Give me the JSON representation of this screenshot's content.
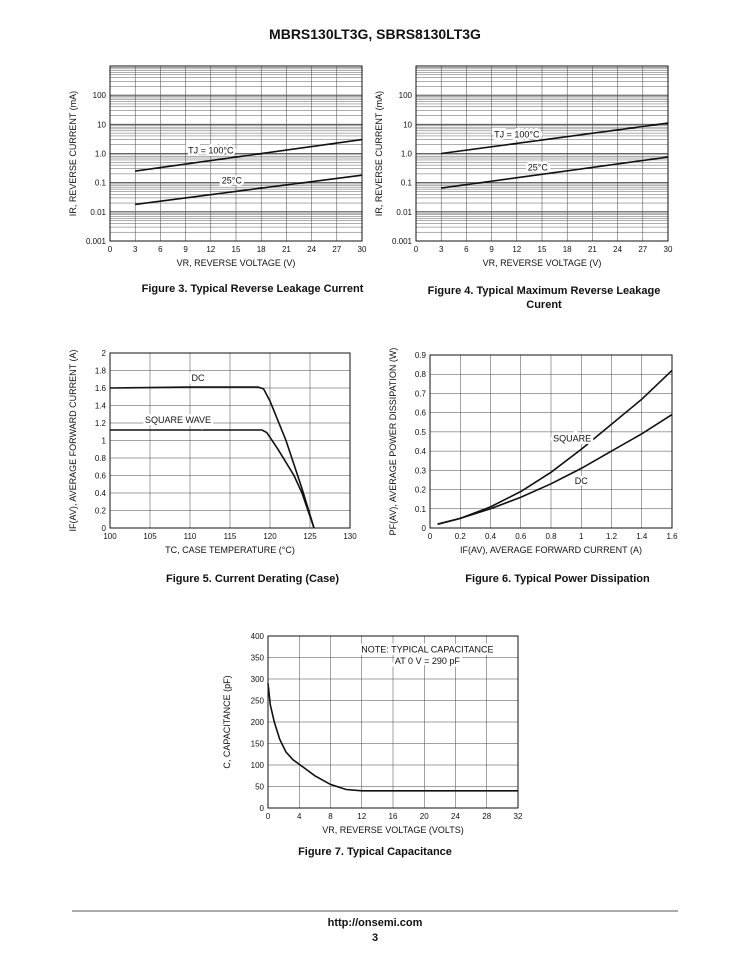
{
  "header": {
    "title": "MBRS130LT3G, SBRS8130LT3G"
  },
  "footer": {
    "url": "http://onsemi.com",
    "page": "3"
  },
  "chart_data": [
    {
      "type": "line",
      "id": "fig3",
      "caption": "Figure 3. Typical Reverse Leakage Current",
      "xlabel": "VR, REVERSE VOLTAGE (V)",
      "ylabel": "IR, REVERSE CURRENT (mA)",
      "xscale": "linear",
      "yscale": "log",
      "xlim": [
        0,
        30
      ],
      "ylim": [
        0.001,
        1000
      ],
      "xticks": [
        0,
        3,
        6,
        9,
        12,
        15,
        18,
        21,
        24,
        27,
        30
      ],
      "yticks": [
        0.001,
        0.01,
        0.1,
        1.0,
        10,
        100
      ],
      "ytick_labels": [
        "0.001",
        "0.01",
        "0.1",
        "1.0",
        "10",
        "100"
      ],
      "series": [
        {
          "name": "TJ = 100°C",
          "x": [
            3,
            30
          ],
          "y": [
            0.25,
            3.0
          ]
        },
        {
          "name": "25°C",
          "x": [
            3,
            30
          ],
          "y": [
            0.018,
            0.18
          ]
        }
      ]
    },
    {
      "type": "line",
      "id": "fig4",
      "caption": "Figure 4. Typical Maximum Reverse Leakage Curent",
      "xlabel": "VR, REVERSE VOLTAGE (V)",
      "ylabel": "IR, REVERSE CURRENT (mA)",
      "xscale": "linear",
      "yscale": "log",
      "xlim": [
        0,
        30
      ],
      "ylim": [
        0.001,
        1000
      ],
      "xticks": [
        0,
        3,
        6,
        9,
        12,
        15,
        18,
        21,
        24,
        27,
        30
      ],
      "yticks": [
        0.001,
        0.01,
        0.1,
        1.0,
        10,
        100
      ],
      "ytick_labels": [
        "0.001",
        "0.01",
        "0.1",
        "1.0",
        "10",
        "100"
      ],
      "series": [
        {
          "name": "TJ = 100°C",
          "x": [
            3,
            30
          ],
          "y": [
            1.0,
            11
          ]
        },
        {
          "name": "25°C",
          "x": [
            3,
            30
          ],
          "y": [
            0.065,
            0.75
          ]
        }
      ]
    },
    {
      "type": "line",
      "id": "fig5",
      "caption": "Figure 5. Current Derating (Case)",
      "xlabel": "TC, CASE TEMPERATURE (°C)",
      "ylabel": "IF(AV), AVERAGE FORWARD CURRENT (A)",
      "xlim": [
        100,
        130
      ],
      "ylim": [
        0,
        2
      ],
      "xticks": [
        100,
        105,
        110,
        115,
        120,
        125,
        130
      ],
      "yticks": [
        0,
        0.2,
        0.4,
        0.6,
        0.8,
        1,
        1.2,
        1.4,
        1.6,
        1.8,
        2
      ],
      "ytick_labels": [
        "0",
        "0.2",
        "0.4",
        "0.6",
        "0.8",
        "1",
        "1.2",
        "1.4",
        "1.6",
        "1.8",
        "2"
      ],
      "series": [
        {
          "name": "DC",
          "x": [
            100,
            110,
            118.5,
            119.2,
            120,
            122,
            124,
            125.5
          ],
          "y": [
            1.6,
            1.61,
            1.61,
            1.59,
            1.45,
            1.0,
            0.45,
            0
          ]
        },
        {
          "name": "SQUARE WAVE",
          "x": [
            100,
            110,
            119,
            119.6,
            121,
            123,
            124,
            125.5
          ],
          "y": [
            1.12,
            1.12,
            1.12,
            1.09,
            0.9,
            0.6,
            0.4,
            0
          ]
        }
      ]
    },
    {
      "type": "line",
      "id": "fig6",
      "caption": "Figure 6. Typical Power Dissipation",
      "xlabel": "IF(AV), AVERAGE FORWARD CURRENT (A)",
      "ylabel": "PF(AV), AVERAGE POWER DISSIPATION (W)",
      "xlim": [
        0,
        1.6
      ],
      "ylim": [
        0,
        0.9
      ],
      "xticks": [
        0,
        0.2,
        0.4,
        0.6,
        0.8,
        1,
        1.2,
        1.4,
        1.6
      ],
      "yticks": [
        0,
        0.1,
        0.2,
        0.3,
        0.4,
        0.5,
        0.6,
        0.7,
        0.8,
        0.9
      ],
      "ytick_labels": [
        "0",
        "0.1",
        "0.2",
        "0.3",
        "0.4",
        "0.5",
        "0.6",
        "0.7",
        "0.8",
        "0.9"
      ],
      "series": [
        {
          "name": "SQUARE",
          "x": [
            0.05,
            0.2,
            0.4,
            0.6,
            0.8,
            1.0,
            1.2,
            1.4,
            1.6
          ],
          "y": [
            0.02,
            0.05,
            0.11,
            0.19,
            0.29,
            0.41,
            0.54,
            0.67,
            0.82
          ]
        },
        {
          "name": "DC",
          "x": [
            0.05,
            0.2,
            0.4,
            0.6,
            0.8,
            1.0,
            1.2,
            1.4,
            1.6
          ],
          "y": [
            0.02,
            0.05,
            0.1,
            0.16,
            0.23,
            0.31,
            0.4,
            0.49,
            0.59
          ]
        }
      ]
    },
    {
      "type": "line",
      "id": "fig7",
      "caption": "Figure 7. Typical Capacitance",
      "xlabel": "VR, REVERSE VOLTAGE (VOLTS)",
      "ylabel": "C, CAPACITANCE (pF)",
      "xlim": [
        0,
        32
      ],
      "ylim": [
        0,
        400
      ],
      "xticks": [
        0,
        4,
        8,
        12,
        16,
        20,
        24,
        28,
        32
      ],
      "yticks": [
        0,
        50,
        100,
        150,
        200,
        250,
        300,
        350,
        400
      ],
      "ytick_labels": [
        "0",
        "50",
        "100",
        "150",
        "200",
        "250",
        "300",
        "350",
        "400"
      ],
      "note_line1": "NOTE: TYPICAL CAPACITANCE",
      "note_line2": "AT 0 V = 290 pF",
      "series": [
        {
          "name": "Capacitance",
          "x": [
            0,
            0.3,
            0.8,
            1.5,
            2.3,
            3.2,
            4.5,
            6,
            8,
            10,
            12,
            20,
            32
          ],
          "y": [
            290,
            240,
            200,
            160,
            130,
            112,
            95,
            75,
            55,
            43,
            40,
            40,
            40
          ]
        }
      ]
    }
  ]
}
